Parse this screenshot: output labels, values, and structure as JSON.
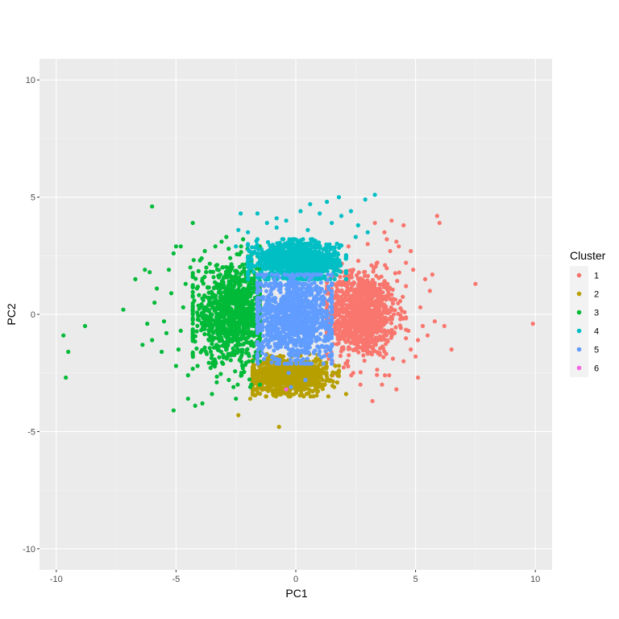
{
  "chart_data": {
    "type": "scatter",
    "title": "",
    "xlabel": "PC1",
    "ylabel": "PC2",
    "xlim": [
      -10.7,
      10.7
    ],
    "ylim": [
      -10.9,
      10.9
    ],
    "x_ticks": [
      -10,
      -5,
      0,
      5,
      10
    ],
    "y_ticks": [
      -10,
      -5,
      0,
      5,
      10
    ],
    "x_tick_labels": [
      "-10",
      "-5",
      "0",
      "5",
      "10"
    ],
    "y_tick_labels": [
      "-10",
      "-5",
      "0",
      "5",
      "10"
    ],
    "grid": true,
    "legend": {
      "title": "Cluster",
      "position": "right"
    },
    "series": [
      {
        "name": "1",
        "color": "#F8766D",
        "cloud": {
          "x_center": 2.7,
          "y_center": 0.0,
          "x_spread": 0.75,
          "y_spread": 0.9,
          "x_min": 1.3,
          "x_max": 4.6,
          "y_min": -2.6,
          "y_max": 2.7
        },
        "points": [
          [
            9.9,
            -0.4
          ],
          [
            7.5,
            1.3
          ],
          [
            6.5,
            -1.5
          ],
          [
            6.0,
            3.9
          ],
          [
            5.9,
            4.2
          ],
          [
            5.3,
            -0.5
          ],
          [
            5.1,
            -2.7
          ],
          [
            4.5,
            3.8
          ],
          [
            4.8,
            2.7
          ],
          [
            4.0,
            4.0
          ],
          [
            4.2,
            3.1
          ],
          [
            3.7,
            3.5
          ],
          [
            3.3,
            3.9
          ],
          [
            3.2,
            -3.7
          ],
          [
            4.2,
            -3.2
          ],
          [
            2.7,
            -3.0
          ],
          [
            3.0,
            3.0
          ],
          [
            5.8,
            -0.3
          ],
          [
            6.2,
            -0.5
          ],
          [
            5.6,
            1.0
          ],
          [
            5.4,
            1.5
          ],
          [
            5.7,
            1.7
          ],
          [
            4.8,
            -1.5
          ],
          [
            5.0,
            -1.8
          ],
          [
            4.6,
            2.2
          ],
          [
            4.9,
            1.9
          ],
          [
            3.8,
            3.2
          ],
          [
            4.5,
            -2.0
          ],
          [
            3.9,
            -2.6
          ],
          [
            5.2,
            0.3
          ],
          [
            5.5,
            -0.9
          ],
          [
            5.1,
            -1.1
          ],
          [
            4.7,
            -0.7
          ],
          [
            3.6,
            -3.0
          ],
          [
            2.4,
            -2.5
          ],
          [
            2.2,
            2.9
          ],
          [
            4.3,
            2.9
          ]
        ]
      },
      {
        "name": "2",
        "color": "#B79F00",
        "cloud": {
          "x_center": -0.3,
          "y_center": -2.6,
          "x_spread": 0.8,
          "y_spread": 0.35,
          "x_min": -1.8,
          "x_max": 1.8,
          "y_min": -3.5,
          "y_max": -1.7
        },
        "points": [
          [
            -0.7,
            -4.8
          ],
          [
            -2.4,
            -4.3
          ],
          [
            -1.9,
            -3.6
          ],
          [
            -0.3,
            -3.5
          ],
          [
            -0.3,
            -3.2
          ],
          [
            2.1,
            -3.4
          ],
          [
            1.6,
            -3.1
          ],
          [
            -1.6,
            -3.3
          ],
          [
            -0.6,
            -3.4
          ],
          [
            0.9,
            -3.3
          ],
          [
            1.2,
            -3.0
          ],
          [
            -1.2,
            -3.1
          ]
        ]
      },
      {
        "name": "3",
        "color": "#00BA38",
        "cloud": {
          "x_center": -2.6,
          "y_center": 0.0,
          "x_spread": 0.85,
          "y_spread": 1.0,
          "x_min": -4.3,
          "x_max": -1.5,
          "y_min": -3.0,
          "y_max": 2.9
        },
        "points": [
          [
            -9.7,
            -0.9
          ],
          [
            -9.6,
            -2.7
          ],
          [
            -9.5,
            -1.6
          ],
          [
            -8.8,
            -0.5
          ],
          [
            -7.2,
            0.2
          ],
          [
            -6.7,
            1.5
          ],
          [
            -6.3,
            1.9
          ],
          [
            -6.1,
            1.8
          ],
          [
            -6.0,
            4.6
          ],
          [
            -5.3,
            1.9
          ],
          [
            -5.1,
            2.6
          ],
          [
            -5.0,
            2.9
          ],
          [
            -4.8,
            2.9
          ],
          [
            -4.3,
            3.9
          ],
          [
            -5.1,
            -4.1
          ],
          [
            -4.5,
            -3.6
          ],
          [
            -4.2,
            -3.9
          ],
          [
            -3.9,
            -3.8
          ],
          [
            -2.5,
            -3.6
          ],
          [
            -6.2,
            -0.4
          ],
          [
            -6.0,
            -1.1
          ],
          [
            -5.6,
            -1.6
          ],
          [
            -5.5,
            -0.3
          ],
          [
            -5.2,
            0.9
          ],
          [
            -5.0,
            -2.2
          ],
          [
            -4.8,
            -0.7
          ],
          [
            -4.6,
            1.3
          ],
          [
            -4.9,
            -1.5
          ],
          [
            -4.7,
            0.3
          ],
          [
            -3.1,
            3.1
          ],
          [
            -2.9,
            3.3
          ],
          [
            -3.5,
            -3.4
          ],
          [
            -3.3,
            -2.9
          ],
          [
            -4.0,
            2.3
          ],
          [
            -4.4,
            2.0
          ],
          [
            -6.4,
            -1.3
          ],
          [
            -5.8,
            1.1
          ],
          [
            -5.4,
            -0.8
          ],
          [
            -4.5,
            -2.6
          ],
          [
            -4.1,
            -2.2
          ],
          [
            -3.8,
            2.7
          ],
          [
            -2.2,
            3.2
          ],
          [
            -1.9,
            -3.1
          ],
          [
            -2.6,
            -3.1
          ],
          [
            -5.9,
            0.5
          ]
        ]
      },
      {
        "name": "4",
        "color": "#00BFC4",
        "cloud": {
          "x_center": 0.0,
          "y_center": 2.3,
          "x_spread": 0.9,
          "y_spread": 0.4,
          "x_min": -2.0,
          "x_max": 2.1,
          "y_min": 1.5,
          "y_max": 3.2
        },
        "points": [
          [
            3.3,
            5.1
          ],
          [
            2.9,
            4.9
          ],
          [
            1.8,
            5.0
          ],
          [
            1.3,
            4.8
          ],
          [
            0.6,
            4.7
          ],
          [
            -0.8,
            4.1
          ],
          [
            -1.6,
            4.3
          ],
          [
            -2.3,
            4.3
          ],
          [
            -2.4,
            3.6
          ],
          [
            2.3,
            4.4
          ],
          [
            1.9,
            4.2
          ],
          [
            1.0,
            4.3
          ],
          [
            0.2,
            4.4
          ],
          [
            -0.4,
            4.0
          ],
          [
            -1.2,
            3.9
          ],
          [
            -2.0,
            3.5
          ],
          [
            2.6,
            3.8
          ],
          [
            1.5,
            3.9
          ],
          [
            0.5,
            3.6
          ],
          [
            -0.8,
            3.7
          ],
          [
            -1.6,
            3.2
          ],
          [
            2.5,
            3.3
          ],
          [
            3.0,
            3.5
          ],
          [
            -2.5,
            2.9
          ],
          [
            -2.0,
            3.0
          ]
        ]
      },
      {
        "name": "5",
        "color": "#619CFF",
        "cloud": {
          "x_center": -0.1,
          "y_center": -0.1,
          "x_spread": 0.85,
          "y_spread": 0.95,
          "x_min": -1.6,
          "x_max": 1.5,
          "y_min": -2.1,
          "y_max": 1.7
        },
        "points": [
          [
            -0.2,
            -3.1
          ],
          [
            -0.3,
            -2.5
          ],
          [
            0.4,
            -2.8
          ]
        ]
      },
      {
        "name": "6",
        "color": "#F564E3",
        "cloud": null,
        "points": [
          [
            -0.4,
            -3.2
          ]
        ]
      }
    ]
  }
}
